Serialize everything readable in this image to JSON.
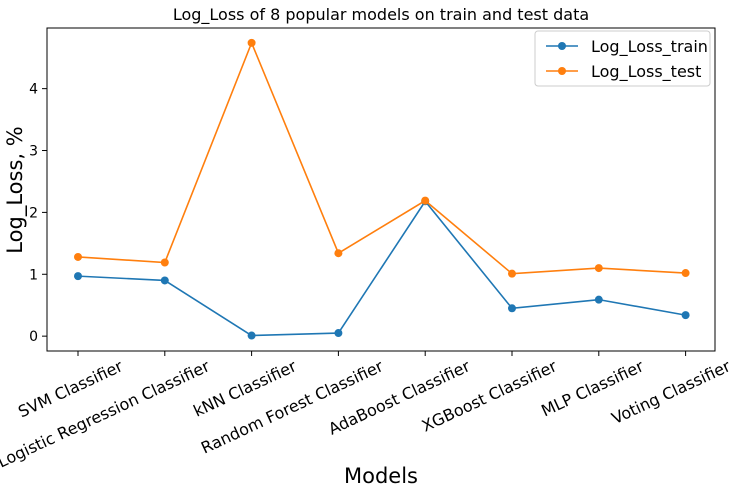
{
  "chart_data": {
    "type": "line",
    "title": "Log_Loss of 8 popular models on train and test data",
    "xlabel": "Models",
    "ylabel": "Log_Loss, %",
    "categories": [
      "SVM Classifier",
      "Logistic Regression Classifier",
      "kNN Classifier",
      "Random Forest Classifier",
      "AdaBoost Classifier",
      "XGBoost Classifier",
      "MLP Classifier",
      "Voting Classifier"
    ],
    "series": [
      {
        "name": "Log_Loss_train",
        "color": "#1f77b4",
        "values": [
          0.97,
          0.9,
          0.01,
          0.05,
          2.18,
          0.45,
          0.59,
          0.34
        ]
      },
      {
        "name": "Log_Loss_test",
        "color": "#ff7f0e",
        "values": [
          1.28,
          1.19,
          4.74,
          1.34,
          2.19,
          1.01,
          1.1,
          1.02
        ]
      }
    ],
    "yticks": [
      0,
      1,
      2,
      3,
      4
    ],
    "ylim": [
      -0.24,
      4.98
    ],
    "grid": false,
    "legend_position": "top-right"
  }
}
